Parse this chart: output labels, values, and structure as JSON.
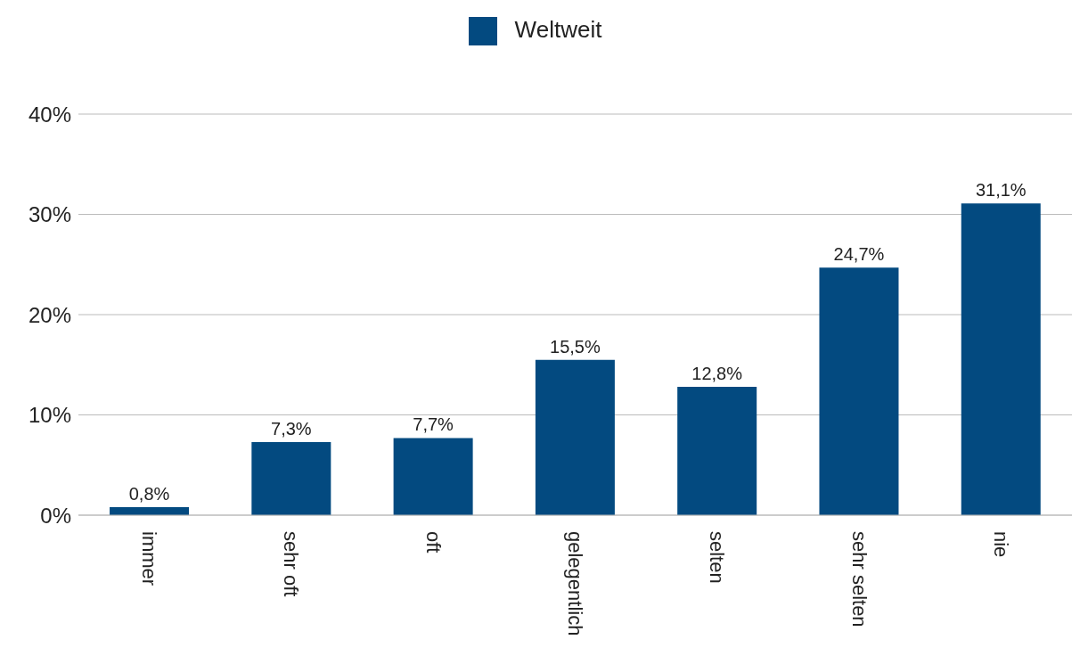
{
  "chart_data": {
    "type": "bar",
    "categories": [
      "immer",
      "sehr oft",
      "oft",
      "gelegentlich",
      "selten",
      "sehr selten",
      "nie"
    ],
    "series": [
      {
        "name": "Weltweit",
        "color": "#034a80",
        "values": [
          0.8,
          7.3,
          7.7,
          15.5,
          12.8,
          24.7,
          31.1
        ],
        "value_labels": [
          "0,8%",
          "7,3%",
          "7,7%",
          "15,5%",
          "12,8%",
          "24,7%",
          "31,1%"
        ]
      }
    ],
    "ylim": [
      0,
      40
    ],
    "yticks": [
      {
        "value": 0,
        "label": "0%"
      },
      {
        "value": 10,
        "label": "10%"
      },
      {
        "value": 20,
        "label": "20%"
      },
      {
        "value": 30,
        "label": "30%"
      },
      {
        "value": 40,
        "label": "40%"
      }
    ],
    "grid": "y",
    "legend": "top"
  }
}
